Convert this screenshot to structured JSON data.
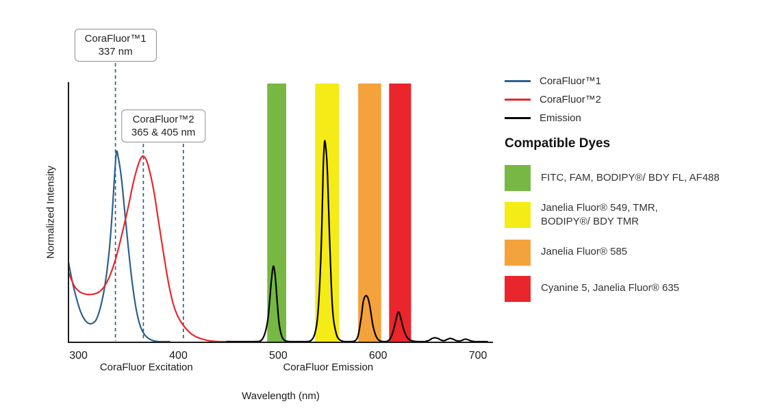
{
  "chart_data": {
    "type": "line",
    "title": "",
    "xlabel": "Wavelength (nm)",
    "ylabel": "Normalized Intensity",
    "xlim": [
      290,
      715
    ],
    "ylim": [
      0,
      1.3
    ],
    "x_ticks": [
      300,
      400,
      500,
      600,
      700
    ],
    "grid": false,
    "legend_position": "right",
    "axis_section_labels": [
      {
        "text": "CoraFluor Excitation",
        "x_nm": 368
      },
      {
        "text": "CoraFluor Emission",
        "x_nm": 550
      }
    ],
    "annotations": [
      {
        "lines": [
          "CoraFluor™1",
          "337 nm"
        ],
        "marker_nm": [
          337
        ],
        "color": "#2b608f"
      },
      {
        "lines": [
          "CoraFluor™2",
          "365 & 405 nm"
        ],
        "marker_nm": [
          365,
          405
        ],
        "color": "#2b608f"
      }
    ],
    "bands": [
      {
        "color": "#76b843",
        "from_nm": 489,
        "to_nm": 508
      },
      {
        "color": "#f5eb16",
        "from_nm": 537,
        "to_nm": 561
      },
      {
        "color": "#f4a23c",
        "from_nm": 580,
        "to_nm": 603
      },
      {
        "color": "#e8262b",
        "from_nm": 611,
        "to_nm": 633
      }
    ],
    "series": [
      {
        "key": "corafluor1-excitation",
        "name": "CoraFluor™1",
        "color": "#2b608f",
        "points": [
          [
            290,
            0.4
          ],
          [
            294,
            0.3
          ],
          [
            298,
            0.22
          ],
          [
            302,
            0.155
          ],
          [
            306,
            0.115
          ],
          [
            310,
            0.095
          ],
          [
            314,
            0.095
          ],
          [
            318,
            0.115
          ],
          [
            322,
            0.175
          ],
          [
            326,
            0.27
          ],
          [
            330,
            0.42
          ],
          [
            333,
            0.59
          ],
          [
            336,
            0.82
          ],
          [
            338,
            0.95
          ],
          [
            340,
            0.92
          ],
          [
            343,
            0.82
          ],
          [
            346,
            0.67
          ],
          [
            350,
            0.47
          ],
          [
            354,
            0.29
          ],
          [
            358,
            0.16
          ],
          [
            362,
            0.08
          ],
          [
            366,
            0.04
          ],
          [
            370,
            0.02
          ],
          [
            375,
            0.008
          ],
          [
            382,
            0.002
          ],
          [
            392,
            0
          ]
        ]
      },
      {
        "key": "corafluor2-excitation",
        "name": "CoraFluor™2",
        "color": "#e8262b",
        "points": [
          [
            290,
            0.35
          ],
          [
            296,
            0.28
          ],
          [
            302,
            0.25
          ],
          [
            308,
            0.24
          ],
          [
            314,
            0.24
          ],
          [
            320,
            0.25
          ],
          [
            326,
            0.28
          ],
          [
            332,
            0.34
          ],
          [
            338,
            0.43
          ],
          [
            344,
            0.55
          ],
          [
            350,
            0.68
          ],
          [
            355,
            0.8
          ],
          [
            360,
            0.89
          ],
          [
            364,
            0.93
          ],
          [
            368,
            0.91
          ],
          [
            372,
            0.84
          ],
          [
            376,
            0.74
          ],
          [
            380,
            0.61
          ],
          [
            385,
            0.45
          ],
          [
            390,
            0.3
          ],
          [
            395,
            0.19
          ],
          [
            400,
            0.125
          ],
          [
            405,
            0.085
          ],
          [
            410,
            0.055
          ],
          [
            416,
            0.032
          ],
          [
            424,
            0.016
          ],
          [
            432,
            0.007
          ],
          [
            442,
            0.002
          ],
          [
            452,
            0
          ]
        ]
      },
      {
        "key": "emission",
        "name": "Emission",
        "color": "#000000",
        "points": [
          [
            448,
            0
          ],
          [
            476,
            0
          ],
          [
            483,
            0.01
          ],
          [
            487,
            0.05
          ],
          [
            490,
            0.13
          ],
          [
            493,
            0.3
          ],
          [
            495,
            0.38
          ],
          [
            497,
            0.33
          ],
          [
            499,
            0.2
          ],
          [
            501,
            0.09
          ],
          [
            504,
            0.025
          ],
          [
            508,
            0.006
          ],
          [
            514,
            0
          ],
          [
            527,
            0
          ],
          [
            533,
            0.01
          ],
          [
            537,
            0.05
          ],
          [
            540,
            0.16
          ],
          [
            543,
            0.47
          ],
          [
            545,
            0.86
          ],
          [
            546,
            0.98
          ],
          [
            547,
            1.0
          ],
          [
            549,
            0.88
          ],
          [
            551,
            0.58
          ],
          [
            553,
            0.3
          ],
          [
            555,
            0.13
          ],
          [
            558,
            0.045
          ],
          [
            561,
            0.015
          ],
          [
            566,
            0.004
          ],
          [
            572,
            0.002
          ],
          [
            577,
            0.008
          ],
          [
            580,
            0.035
          ],
          [
            583,
            0.12
          ],
          [
            585,
            0.2
          ],
          [
            587,
            0.23
          ],
          [
            589,
            0.23
          ],
          [
            591,
            0.2
          ],
          [
            593,
            0.14
          ],
          [
            595,
            0.08
          ],
          [
            598,
            0.03
          ],
          [
            601,
            0.01
          ],
          [
            605,
            0.004
          ],
          [
            609,
            0.005
          ],
          [
            612,
            0.018
          ],
          [
            615,
            0.055
          ],
          [
            618,
            0.115
          ],
          [
            620,
            0.15
          ],
          [
            622,
            0.135
          ],
          [
            625,
            0.075
          ],
          [
            628,
            0.033
          ],
          [
            631,
            0.014
          ],
          [
            635,
            0.006
          ],
          [
            641,
            0.002
          ],
          [
            647,
            0.004
          ],
          [
            651,
            0.01
          ],
          [
            654,
            0.019
          ],
          [
            657,
            0.023
          ],
          [
            660,
            0.019
          ],
          [
            663,
            0.011
          ],
          [
            666,
            0.008
          ],
          [
            669,
            0.014
          ],
          [
            672,
            0.02
          ],
          [
            675,
            0.016
          ],
          [
            678,
            0.009
          ],
          [
            681,
            0.006
          ],
          [
            684,
            0.01
          ],
          [
            687,
            0.016
          ],
          [
            690,
            0.013
          ],
          [
            693,
            0.007
          ],
          [
            697,
            0.003
          ],
          [
            702,
            0.001
          ],
          [
            710,
            0
          ]
        ]
      }
    ]
  },
  "dyes": {
    "heading": "Compatible Dyes",
    "items": [
      {
        "color": "#76b843",
        "lines": [
          "FITC, FAM, BODIPY®/ BDY FL, AF488"
        ]
      },
      {
        "color": "#f5eb16",
        "lines": [
          "Janelia Fluor® 549, TMR,",
          "BODIPY®/ BDY TMR"
        ]
      },
      {
        "color": "#f4a23c",
        "lines": [
          "Janelia Fluor® 585"
        ]
      },
      {
        "color": "#e8262b",
        "lines": [
          "Cyanine 5, Janelia Fluor® 635"
        ]
      }
    ]
  }
}
